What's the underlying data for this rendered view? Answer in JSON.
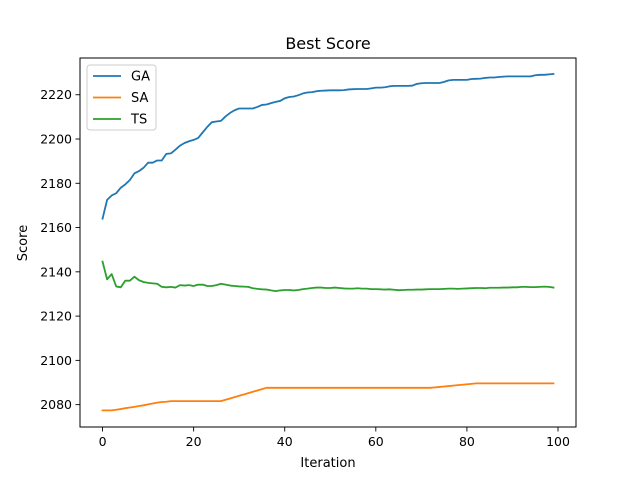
{
  "chart_data": {
    "type": "line",
    "title": "Best Score",
    "xlabel": "Iteration",
    "ylabel": "Score",
    "xlim": [
      -4.95,
      103.95
    ],
    "ylim": [
      2069.9,
      2236.6
    ],
    "xticks": [
      0,
      20,
      40,
      60,
      80,
      100
    ],
    "yticks": [
      2080,
      2100,
      2120,
      2140,
      2160,
      2180,
      2200,
      2220
    ],
    "grid": false,
    "legend_position": "top-left",
    "series": [
      {
        "name": "GA",
        "color": "#1f77b4",
        "x": [
          0,
          1,
          2,
          3,
          4,
          5,
          6,
          7,
          8,
          9,
          10,
          11,
          12,
          13,
          14,
          15,
          16,
          17,
          18,
          19,
          20,
          21,
          22,
          23,
          24,
          25,
          26,
          27,
          28,
          29,
          30,
          31,
          32,
          33,
          34,
          35,
          36,
          37,
          38,
          39,
          40,
          41,
          42,
          43,
          44,
          45,
          46,
          47,
          48,
          49,
          50,
          51,
          52,
          53,
          54,
          55,
          56,
          57,
          58,
          59,
          60,
          61,
          62,
          63,
          64,
          65,
          66,
          67,
          68,
          69,
          70,
          71,
          72,
          73,
          74,
          75,
          76,
          77,
          78,
          79,
          80,
          81,
          82,
          83,
          84,
          85,
          86,
          87,
          88,
          89,
          90,
          91,
          92,
          93,
          94,
          95,
          96,
          97,
          98,
          99
        ],
        "values": [
          2164,
          2172.5,
          2174.5,
          2175.5,
          2178,
          2179.5,
          2181.5,
          2184.5,
          2185.5,
          2187,
          2189.3,
          2189.3,
          2190.3,
          2190.3,
          2193.3,
          2193.5,
          2195.2,
          2197,
          2198.2,
          2199,
          2199.6,
          2200.5,
          2203,
          2205.5,
          2207.6,
          2207.9,
          2208.2,
          2210.2,
          2211.8,
          2213,
          2213.8,
          2213.8,
          2213.8,
          2213.8,
          2214.5,
          2215.4,
          2215.6,
          2216.2,
          2216.8,
          2217.2,
          2218.4,
          2219,
          2219.2,
          2219.8,
          2220.6,
          2221,
          2221.2,
          2221.6,
          2221.8,
          2221.9,
          2222,
          2222,
          2222,
          2222.1,
          2222.4,
          2222.5,
          2222.6,
          2222.6,
          2222.6,
          2222.9,
          2223.2,
          2223.2,
          2223.4,
          2223.8,
          2224,
          2224,
          2224,
          2224,
          2224.1,
          2224.9,
          2225.2,
          2225.3,
          2225.3,
          2225.3,
          2225.3,
          2225.8,
          2226.5,
          2226.7,
          2226.7,
          2226.7,
          2226.7,
          2227.1,
          2227.2,
          2227.3,
          2227.6,
          2227.8,
          2227.8,
          2228,
          2228.2,
          2228.3,
          2228.3,
          2228.3,
          2228.3,
          2228.3,
          2228.3,
          2228.8,
          2229,
          2229,
          2229.2,
          2229.4
        ]
      },
      {
        "name": "SA",
        "color": "#ff7f0e",
        "x": [
          0,
          1,
          2,
          3,
          4,
          5,
          6,
          7,
          8,
          9,
          10,
          11,
          12,
          13,
          14,
          15,
          16,
          17,
          18,
          19,
          20,
          21,
          22,
          23,
          24,
          25,
          26,
          27,
          28,
          29,
          30,
          31,
          32,
          33,
          34,
          35,
          36,
          37,
          38,
          39,
          40,
          41,
          42,
          43,
          44,
          45,
          46,
          47,
          48,
          49,
          50,
          51,
          52,
          53,
          54,
          55,
          56,
          57,
          58,
          59,
          60,
          61,
          62,
          63,
          64,
          65,
          66,
          67,
          68,
          69,
          70,
          71,
          72,
          73,
          74,
          75,
          76,
          77,
          78,
          79,
          80,
          81,
          82,
          83,
          84,
          85,
          86,
          87,
          88,
          89,
          90,
          91,
          92,
          93,
          94,
          95,
          96,
          97,
          98,
          99
        ],
        "values": [
          2077.4,
          2077.4,
          2077.4,
          2077.7,
          2078,
          2078.4,
          2078.7,
          2079,
          2079.4,
          2079.7,
          2080.1,
          2080.5,
          2080.9,
          2081.2,
          2081.3,
          2081.6,
          2081.6,
          2081.6,
          2081.6,
          2081.6,
          2081.6,
          2081.6,
          2081.6,
          2081.6,
          2081.6,
          2081.6,
          2081.6,
          2082.2,
          2082.8,
          2083.4,
          2084,
          2084.6,
          2085.2,
          2085.8,
          2086.4,
          2087,
          2087.6,
          2087.6,
          2087.6,
          2087.6,
          2087.6,
          2087.6,
          2087.6,
          2087.6,
          2087.6,
          2087.6,
          2087.6,
          2087.6,
          2087.6,
          2087.6,
          2087.6,
          2087.6,
          2087.6,
          2087.6,
          2087.6,
          2087.6,
          2087.6,
          2087.6,
          2087.6,
          2087.6,
          2087.6,
          2087.6,
          2087.6,
          2087.6,
          2087.6,
          2087.6,
          2087.6,
          2087.6,
          2087.6,
          2087.6,
          2087.6,
          2087.6,
          2087.6,
          2087.8,
          2088,
          2088.2,
          2088.4,
          2088.6,
          2088.8,
          2089,
          2089.2,
          2089.4,
          2089.6,
          2089.6,
          2089.6,
          2089.6,
          2089.6,
          2089.6,
          2089.6,
          2089.6,
          2089.6,
          2089.6,
          2089.6,
          2089.6,
          2089.6,
          2089.6,
          2089.6,
          2089.6,
          2089.6,
          2089.6
        ]
      },
      {
        "name": "TS",
        "color": "#2ca02c",
        "x": [
          0,
          1,
          2,
          3,
          4,
          5,
          6,
          7,
          8,
          9,
          10,
          11,
          12,
          13,
          14,
          15,
          16,
          17,
          18,
          19,
          20,
          21,
          22,
          23,
          24,
          25,
          26,
          27,
          28,
          29,
          30,
          31,
          32,
          33,
          34,
          35,
          36,
          37,
          38,
          39,
          40,
          41,
          42,
          43,
          44,
          45,
          46,
          47,
          48,
          49,
          50,
          51,
          52,
          53,
          54,
          55,
          56,
          57,
          58,
          59,
          60,
          61,
          62,
          63,
          64,
          65,
          66,
          67,
          68,
          69,
          70,
          71,
          72,
          73,
          74,
          75,
          76,
          77,
          78,
          79,
          80,
          81,
          82,
          83,
          84,
          85,
          86,
          87,
          88,
          89,
          90,
          91,
          92,
          93,
          94,
          95,
          96,
          97,
          98,
          99
        ],
        "values": [
          2144.6,
          2136.6,
          2139,
          2133.4,
          2133,
          2136,
          2136,
          2137.8,
          2136.2,
          2135.4,
          2135,
          2134.8,
          2134.6,
          2133.2,
          2133,
          2133.2,
          2132.9,
          2134,
          2133.8,
          2134,
          2133.6,
          2134.2,
          2134.2,
          2133.6,
          2133.6,
          2134,
          2134.6,
          2134.2,
          2133.8,
          2133.6,
          2133.4,
          2133.3,
          2133.2,
          2132.6,
          2132.3,
          2132.1,
          2132,
          2131.6,
          2131.3,
          2131.6,
          2131.8,
          2131.8,
          2131.6,
          2131.8,
          2132.2,
          2132.4,
          2132.7,
          2132.9,
          2132.9,
          2132.7,
          2132.7,
          2132.9,
          2132.7,
          2132.5,
          2132.4,
          2132.4,
          2132.6,
          2132.4,
          2132.4,
          2132.2,
          2132.2,
          2132.1,
          2132,
          2132.1,
          2131.9,
          2131.7,
          2131.8,
          2131.9,
          2131.9,
          2132,
          2132,
          2132.1,
          2132.2,
          2132.2,
          2132.2,
          2132.3,
          2132.4,
          2132.4,
          2132.3,
          2132.4,
          2132.5,
          2132.6,
          2132.7,
          2132.7,
          2132.6,
          2132.8,
          2132.8,
          2132.8,
          2132.9,
          2132.9,
          2133,
          2133,
          2133.2,
          2133.2,
          2133.1,
          2133.1,
          2133.2,
          2133.3,
          2133.2,
          2132.9
        ]
      }
    ]
  }
}
